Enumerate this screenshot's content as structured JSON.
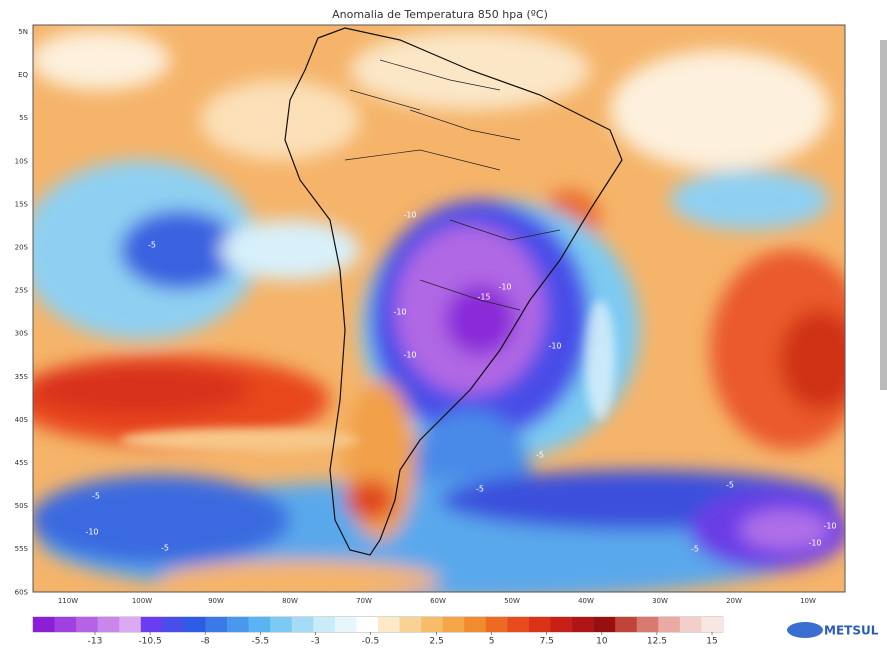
{
  "title": "Anomalia de Temperatura 850 hpa (ºC)",
  "latitudes": [
    "5N",
    "EQ",
    "5S",
    "10S",
    "15S",
    "20S",
    "25S",
    "30S",
    "35S",
    "40S",
    "45S",
    "50S",
    "55S",
    "60S"
  ],
  "longitudes": [
    "110W",
    "100W",
    "90W",
    "80W",
    "70W",
    "60W",
    "50W",
    "40W",
    "30W",
    "20W",
    "10W"
  ],
  "colorbar": {
    "ticks": [
      -13,
      -10.5,
      -8,
      -5.5,
      -3,
      -0.5,
      2.5,
      5,
      7.5,
      10,
      12.5,
      15
    ],
    "colors": [
      "#8a1fd6",
      "#a040e0",
      "#b562e6",
      "#c987ec",
      "#dcaaf2",
      "#6a3ef0",
      "#4a4ee8",
      "#2f5ce6",
      "#3a7ae8",
      "#4a98ee",
      "#5ab4f2",
      "#7ccaf4",
      "#a4dcf6",
      "#c8ecfa",
      "#e6f6fc",
      "#ffffff",
      "#fbe9c8",
      "#f8d294",
      "#f6bc6a",
      "#f4a648",
      "#f28a30",
      "#ee6a22",
      "#e84c1c",
      "#dc3218",
      "#c82016",
      "#b01414",
      "#961010",
      "#c0443a",
      "#d87a70",
      "#e8aaa2",
      "#f2cfc8",
      "#f8e6e2"
    ]
  },
  "contour_labels": [
    "-10",
    "-10",
    "-10",
    "-10",
    "-15",
    "-10",
    "-10",
    "-5",
    "-5",
    "-5",
    "-5",
    "-5",
    "-5",
    "-5",
    "-10",
    "-10"
  ],
  "logo": "METSUL"
}
